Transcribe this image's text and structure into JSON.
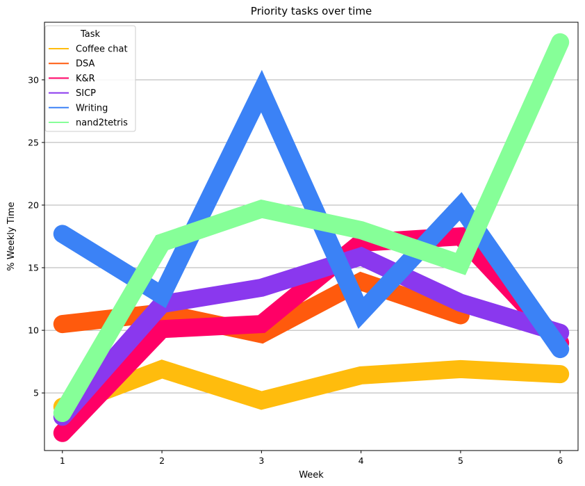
{
  "chart_data": {
    "type": "line",
    "title": "Priority tasks over time",
    "xlabel": "Week",
    "ylabel": "% Weekly Time",
    "x": [
      1,
      2,
      3,
      4,
      5,
      6
    ],
    "xlim": [
      0.82,
      6.18
    ],
    "ylim": [
      0.4,
      34.6
    ],
    "xticks": [
      1,
      2,
      3,
      4,
      5,
      6
    ],
    "yticks": [
      5,
      10,
      15,
      20,
      25,
      30
    ],
    "grid": "y-major",
    "legend": {
      "title": "Task",
      "placement": "top-left"
    },
    "series": [
      {
        "name": "Coffee chat",
        "color": "#ffbc0d",
        "values": [
          3.9,
          6.9,
          4.4,
          6.4,
          6.9,
          6.5
        ]
      },
      {
        "name": "DSA",
        "color": "#ff5a0d",
        "values": [
          10.5,
          11.4,
          9.7,
          13.9,
          11.2,
          null
        ]
      },
      {
        "name": "K&R",
        "color": "#ff0066",
        "values": [
          1.8,
          10.1,
          10.5,
          17.0,
          17.5,
          9.0
        ]
      },
      {
        "name": "SICP",
        "color": "#8a38ee",
        "values": [
          3.1,
          12.1,
          13.4,
          15.9,
          12.2,
          9.8
        ]
      },
      {
        "name": "Writing",
        "color": "#3b82f6",
        "values": [
          17.7,
          12.8,
          29.1,
          11.4,
          19.9,
          8.5
        ]
      },
      {
        "name": "nand2tetris",
        "color": "#86ff98",
        "values": [
          3.4,
          17.0,
          19.7,
          18.0,
          15.3,
          33.0
        ]
      }
    ]
  }
}
